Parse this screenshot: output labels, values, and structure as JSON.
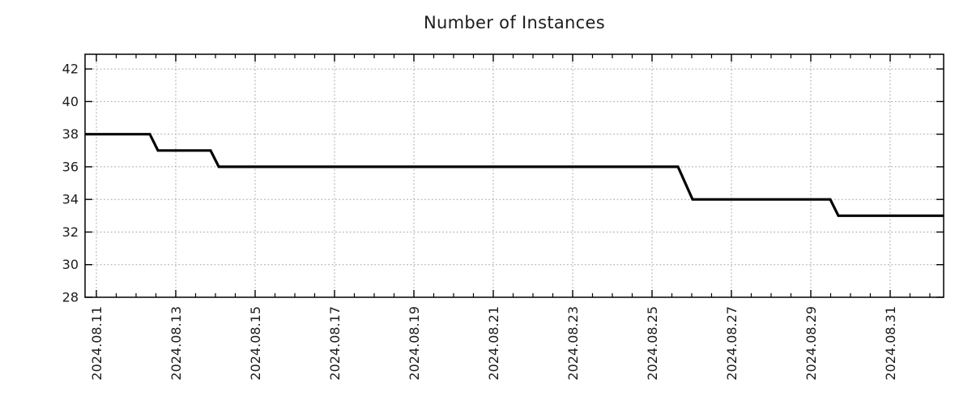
{
  "chart_data": {
    "type": "line",
    "title": "Number of Instances",
    "xlabel": "",
    "ylabel": "",
    "legend": "none",
    "grid": "dotted",
    "ylim": [
      28,
      42.9
    ],
    "xlim": [
      "2024-08-10T17:09",
      "2024-09-01T08:20"
    ],
    "y_ticks": [
      28,
      30,
      32,
      34,
      36,
      38,
      40,
      42
    ],
    "x_ticks": [
      {
        "label": "2024.08.11",
        "t": "2024-08-11T00:00"
      },
      {
        "label": "2024.08.13",
        "t": "2024-08-13T00:00"
      },
      {
        "label": "2024.08.15",
        "t": "2024-08-15T00:00"
      },
      {
        "label": "2024.08.17",
        "t": "2024-08-17T00:00"
      },
      {
        "label": "2024.08.19",
        "t": "2024-08-19T00:00"
      },
      {
        "label": "2024.08.21",
        "t": "2024-08-21T00:00"
      },
      {
        "label": "2024.08.23",
        "t": "2024-08-23T00:00"
      },
      {
        "label": "2024.08.25",
        "t": "2024-08-25T00:00"
      },
      {
        "label": "2024.08.27",
        "t": "2024-08-27T00:00"
      },
      {
        "label": "2024.08.29",
        "t": "2024-08-29T00:00"
      },
      {
        "label": "2024.08.31",
        "t": "2024-08-31T00:00"
      }
    ],
    "x_minor_interval_hours": 12,
    "colors": {
      "line": "#000000",
      "grid": "#a6a6a6",
      "frame": "#000000",
      "text": "#1c1c1c",
      "background": "#ffffff"
    },
    "series": [
      {
        "name": "instances",
        "points": [
          {
            "t": "2024-08-10T17:09",
            "v": 38
          },
          {
            "t": "2024-08-12T08:20",
            "v": 38
          },
          {
            "t": "2024-08-12T13:15",
            "v": 37
          },
          {
            "t": "2024-08-13T21:05",
            "v": 37
          },
          {
            "t": "2024-08-14T02:00",
            "v": 36
          },
          {
            "t": "2024-08-25T15:40",
            "v": 36
          },
          {
            "t": "2024-08-26T00:30",
            "v": 34
          },
          {
            "t": "2024-08-29T11:45",
            "v": 34
          },
          {
            "t": "2024-08-29T16:40",
            "v": 33
          },
          {
            "t": "2024-09-01T08:20",
            "v": 33
          }
        ]
      }
    ]
  }
}
